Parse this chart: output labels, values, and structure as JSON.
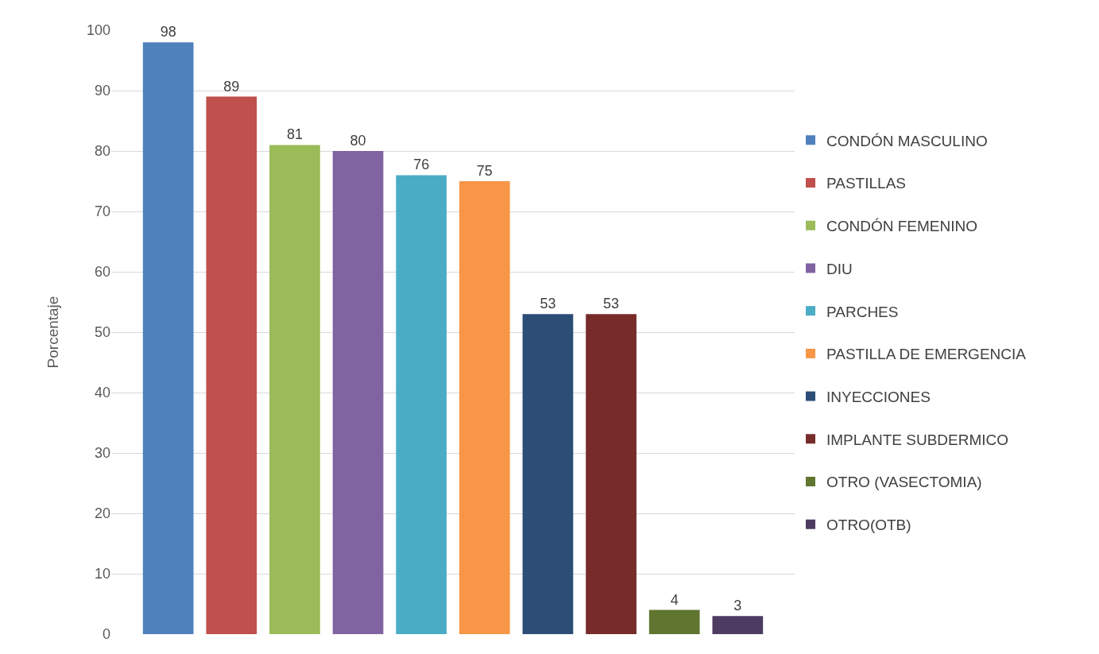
{
  "chart_data": {
    "type": "bar",
    "ylabel": "Porcentaje",
    "categories": [
      null,
      null,
      null,
      null,
      null,
      null,
      null,
      null,
      null,
      null
    ],
    "series": [
      {
        "name": "CONDÓN MASCULINO",
        "color": "#4f81bd",
        "values": [
          98,
          null,
          null,
          null,
          null,
          null,
          null,
          null,
          null,
          null
        ]
      },
      {
        "name": "PASTILLAS",
        "color": "#c0504d",
        "values": [
          null,
          89,
          null,
          null,
          null,
          null,
          null,
          null,
          null,
          null
        ]
      },
      {
        "name": "CONDÓN FEMENINO",
        "color": "#9bbb59",
        "values": [
          null,
          null,
          81,
          null,
          null,
          null,
          null,
          null,
          null,
          null
        ]
      },
      {
        "name": "DIU",
        "color": "#8064a2",
        "values": [
          null,
          null,
          null,
          80,
          null,
          null,
          null,
          null,
          null,
          null
        ]
      },
      {
        "name": "PARCHES",
        "color": "#4bacc6",
        "values": [
          null,
          null,
          null,
          null,
          76,
          null,
          null,
          null,
          null,
          null
        ]
      },
      {
        "name": "PASTILLA DE EMERGENCIA",
        "color": "#f79646",
        "values": [
          null,
          null,
          null,
          null,
          null,
          75,
          null,
          null,
          null,
          null
        ]
      },
      {
        "name": "INYECCIONES",
        "color": "#2c4d75",
        "values": [
          null,
          null,
          null,
          null,
          null,
          null,
          53,
          null,
          null,
          null
        ]
      },
      {
        "name": "IMPLANTE SUBDERMICO",
        "color": "#772c2a",
        "values": [
          null,
          null,
          null,
          null,
          null,
          null,
          null,
          53,
          null,
          null
        ]
      },
      {
        "name": "OTRO (VASECTOMIA)",
        "color": "#5f7530",
        "values": [
          null,
          null,
          null,
          null,
          null,
          null,
          null,
          null,
          4,
          null
        ]
      },
      {
        "name": "OTRO(OTB)",
        "color": "#4d3b62",
        "values": [
          null,
          null,
          null,
          null,
          null,
          null,
          null,
          null,
          null,
          3
        ]
      }
    ],
    "ylim": [
      0,
      100
    ],
    "yticks": [
      0,
      10,
      20,
      30,
      40,
      50,
      60,
      70,
      80,
      90,
      100
    ],
    "grid": "y",
    "legend": "right",
    "data_labels": true
  }
}
